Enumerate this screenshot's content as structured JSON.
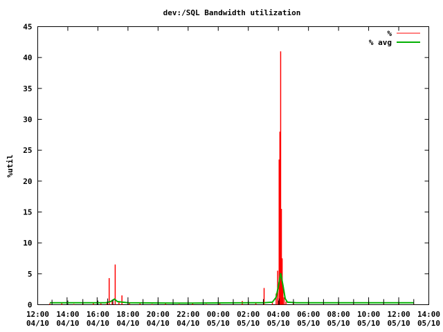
{
  "chart_data": {
    "type": "line",
    "title": "dev:/SQL Bandwidth utilization",
    "ylabel": "%util",
    "xlabel": "",
    "ylim": [
      0,
      45
    ],
    "xlim": [
      0,
      26
    ],
    "grid": false,
    "legend_position": "top-right",
    "yticks": [
      0,
      5,
      10,
      15,
      20,
      25,
      30,
      35,
      40,
      45
    ],
    "xticks": [
      {
        "x": 0,
        "time": "12:00",
        "date": "04/10"
      },
      {
        "x": 2,
        "time": "14:00",
        "date": "04/10"
      },
      {
        "x": 4,
        "time": "16:00",
        "date": "04/10"
      },
      {
        "x": 6,
        "time": "18:00",
        "date": "04/10"
      },
      {
        "x": 8,
        "time": "20:00",
        "date": "04/10"
      },
      {
        "x": 10,
        "time": "22:00",
        "date": "04/10"
      },
      {
        "x": 12,
        "time": "00:00",
        "date": "05/10"
      },
      {
        "x": 14,
        "time": "02:00",
        "date": "05/10"
      },
      {
        "x": 16,
        "time": "04:00",
        "date": "05/10"
      },
      {
        "x": 18,
        "time": "06:00",
        "date": "05/10"
      },
      {
        "x": 20,
        "time": "08:00",
        "date": "05/10"
      },
      {
        "x": 22,
        "time": "10:00",
        "date": "05/10"
      },
      {
        "x": 24,
        "time": "12:00",
        "date": "05/10"
      },
      {
        "x": 26,
        "time": "14:00",
        "date": "05/10"
      }
    ],
    "series": [
      {
        "name": "%",
        "color": "#ff0000",
        "style": "impulses",
        "points": [
          [
            0.8,
            0.2
          ],
          [
            1.6,
            0.2
          ],
          [
            2.4,
            0.1
          ],
          [
            3.0,
            0.2
          ],
          [
            3.7,
            0.3
          ],
          [
            4.2,
            0.2
          ],
          [
            4.6,
            0.3
          ],
          [
            4.75,
            4.3
          ],
          [
            4.95,
            0.8
          ],
          [
            5.15,
            6.5
          ],
          [
            5.4,
            0.5
          ],
          [
            5.6,
            1.5
          ],
          [
            6.1,
            0.3
          ],
          [
            6.8,
            0.2
          ],
          [
            7.6,
            0.1
          ],
          [
            8.5,
            0.2
          ],
          [
            9.4,
            0.1
          ],
          [
            10.3,
            0.2
          ],
          [
            11.2,
            0.1
          ],
          [
            12.1,
            0.2
          ],
          [
            13.0,
            0.1
          ],
          [
            13.6,
            0.6
          ],
          [
            14.0,
            0.2
          ],
          [
            14.5,
            0.3
          ],
          [
            15.05,
            2.7
          ],
          [
            15.6,
            0.5
          ],
          [
            15.85,
            1.8
          ],
          [
            15.95,
            5.5
          ],
          [
            16.05,
            23.5
          ],
          [
            16.1,
            28.0
          ],
          [
            16.15,
            41.0
          ],
          [
            16.2,
            15.5
          ],
          [
            16.25,
            7.5
          ],
          [
            16.3,
            3.0
          ],
          [
            16.38,
            1.2
          ],
          [
            16.5,
            0.5
          ],
          [
            17.0,
            0.3
          ],
          [
            18.0,
            0.2
          ],
          [
            19.0,
            0.1
          ],
          [
            20.0,
            0.2
          ],
          [
            21.0,
            0.1
          ],
          [
            22.0,
            0.2
          ],
          [
            23.0,
            0.1
          ],
          [
            24.0,
            0.2
          ],
          [
            25.0,
            0.1
          ]
        ]
      },
      {
        "name": "% avg",
        "color": "#00b000",
        "style": "line",
        "points": [
          [
            0.8,
            0.3
          ],
          [
            3.5,
            0.3
          ],
          [
            4.5,
            0.3
          ],
          [
            4.85,
            0.5
          ],
          [
            5.1,
            0.9
          ],
          [
            5.3,
            0.5
          ],
          [
            6.0,
            0.3
          ],
          [
            10.0,
            0.25
          ],
          [
            14.0,
            0.3
          ],
          [
            15.0,
            0.3
          ],
          [
            15.6,
            0.4
          ],
          [
            15.85,
            1.2
          ],
          [
            16.0,
            3.0
          ],
          [
            16.15,
            5.1
          ],
          [
            16.3,
            3.2
          ],
          [
            16.45,
            1.0
          ],
          [
            16.6,
            0.4
          ],
          [
            17.2,
            0.3
          ],
          [
            22.0,
            0.3
          ],
          [
            25.0,
            0.3
          ]
        ]
      },
      {
        "name": "",
        "color": "#000000",
        "style": "impulses",
        "points": [
          [
            0.95,
            0.8
          ],
          [
            1.95,
            1.2
          ],
          [
            3.0,
            0.9
          ],
          [
            3.95,
            1.2
          ],
          [
            4.65,
            1.0
          ],
          [
            5.0,
            0.8
          ],
          [
            6.0,
            1.2
          ],
          [
            7.0,
            0.9
          ],
          [
            8.0,
            1.2
          ],
          [
            9.0,
            0.9
          ],
          [
            10.0,
            1.2
          ],
          [
            11.0,
            0.9
          ],
          [
            12.0,
            1.2
          ],
          [
            13.0,
            0.9
          ],
          [
            14.0,
            1.2
          ],
          [
            15.0,
            0.9
          ],
          [
            16.05,
            1.0
          ],
          [
            17.0,
            0.9
          ],
          [
            18.0,
            1.2
          ],
          [
            19.0,
            0.9
          ],
          [
            20.0,
            1.2
          ],
          [
            21.0,
            0.9
          ],
          [
            22.0,
            1.2
          ],
          [
            23.0,
            0.9
          ],
          [
            24.0,
            1.2
          ],
          [
            25.0,
            0.9
          ]
        ]
      }
    ]
  }
}
